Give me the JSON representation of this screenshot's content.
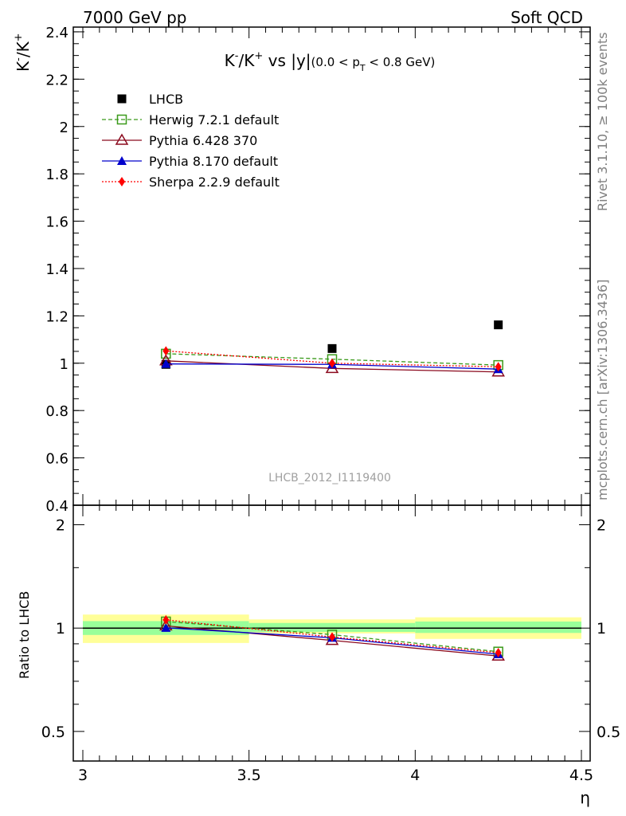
{
  "header": {
    "left": "7000 GeV pp",
    "right": "Soft QCD"
  },
  "side_labels": {
    "rivet": "Rivet 3.1.10, ≥ 100k events",
    "mcplots": "mcplots.cern.ch [arXiv:1306.3436]"
  },
  "chart_data": [
    {
      "type": "scatter",
      "title": "K⁻/K⁺ vs |y|(0.0 < p_T < 0.8 GeV)",
      "ylabel": "K⁻/K⁺",
      "xlabel": "η",
      "xlim": [
        3.0,
        4.5
      ],
      "ylim": [
        0.4,
        2.42
      ],
      "yticks": [
        "0.4",
        "0.6",
        "0.8",
        "1",
        "1.2",
        "1.4",
        "1.6",
        "1.8",
        "2",
        "2.2",
        "2.4"
      ],
      "xticks": [
        "3",
        "3.5",
        "4",
        "4.5"
      ],
      "watermark": "LHCB_2012_I1119400",
      "legend_position": "top-left",
      "series": [
        {
          "name": "LHCB",
          "x": [
            3.25,
            3.75,
            4.25
          ],
          "values": [
            0.995,
            1.062,
            1.162
          ],
          "color": "#000000",
          "marker": "square-filled"
        },
        {
          "name": "Herwig 7.2.1 default",
          "x": [
            3.25,
            3.75,
            4.25
          ],
          "values": [
            1.04,
            1.017,
            0.992
          ],
          "color": "#3a9a1a",
          "marker": "square-open",
          "line": "dashed"
        },
        {
          "name": "Pythia 6.428 370",
          "x": [
            3.25,
            3.75,
            4.25
          ],
          "values": [
            1.01,
            0.978,
            0.963
          ],
          "color": "#8b0a1e",
          "marker": "triangle-open",
          "line": "solid"
        },
        {
          "name": "Pythia 8.170 default",
          "x": [
            3.25,
            3.75,
            4.25
          ],
          "values": [
            0.997,
            0.995,
            0.975
          ],
          "color": "#0000cc",
          "marker": "triangle-filled",
          "line": "solid"
        },
        {
          "name": "Sherpa 2.2.9 default",
          "x": [
            3.25,
            3.75,
            4.25
          ],
          "values": [
            1.052,
            1.0,
            0.985
          ],
          "color": "#ff0000",
          "marker": "diamond-filled",
          "line": "dotted"
        }
      ]
    },
    {
      "type": "scatter",
      "ylabel": "Ratio to LHCB",
      "xlabel": "η",
      "xlim": [
        3.0,
        4.5
      ],
      "ylim": [
        0.41,
        2.28
      ],
      "log_y": true,
      "yticks": [
        "0.5",
        "1",
        "2"
      ],
      "bands": [
        {
          "x": [
            3.0,
            3.5
          ],
          "inner": [
            0.955,
            1.048
          ],
          "outer": [
            0.905,
            1.095
          ]
        },
        {
          "x": [
            3.5,
            4.0
          ],
          "inner": [
            0.975,
            1.035
          ],
          "outer": [
            0.965,
            1.06
          ]
        },
        {
          "x": [
            4.0,
            4.5
          ],
          "inner": [
            0.968,
            1.045
          ],
          "outer": [
            0.93,
            1.075
          ]
        }
      ],
      "series": [
        {
          "name": "Herwig 7.2.1 default",
          "x": [
            3.25,
            3.75,
            4.25
          ],
          "values": [
            1.045,
            0.957,
            0.854
          ]
        },
        {
          "name": "Pythia 6.428 370",
          "x": [
            3.25,
            3.75,
            4.25
          ],
          "values": [
            1.015,
            0.921,
            0.829
          ]
        },
        {
          "name": "Pythia 8.170 default",
          "x": [
            3.25,
            3.75,
            4.25
          ],
          "values": [
            1.002,
            0.937,
            0.839
          ]
        },
        {
          "name": "Sherpa 2.2.9 default",
          "x": [
            3.25,
            3.75,
            4.25
          ],
          "values": [
            1.057,
            0.942,
            0.848
          ]
        }
      ]
    }
  ]
}
